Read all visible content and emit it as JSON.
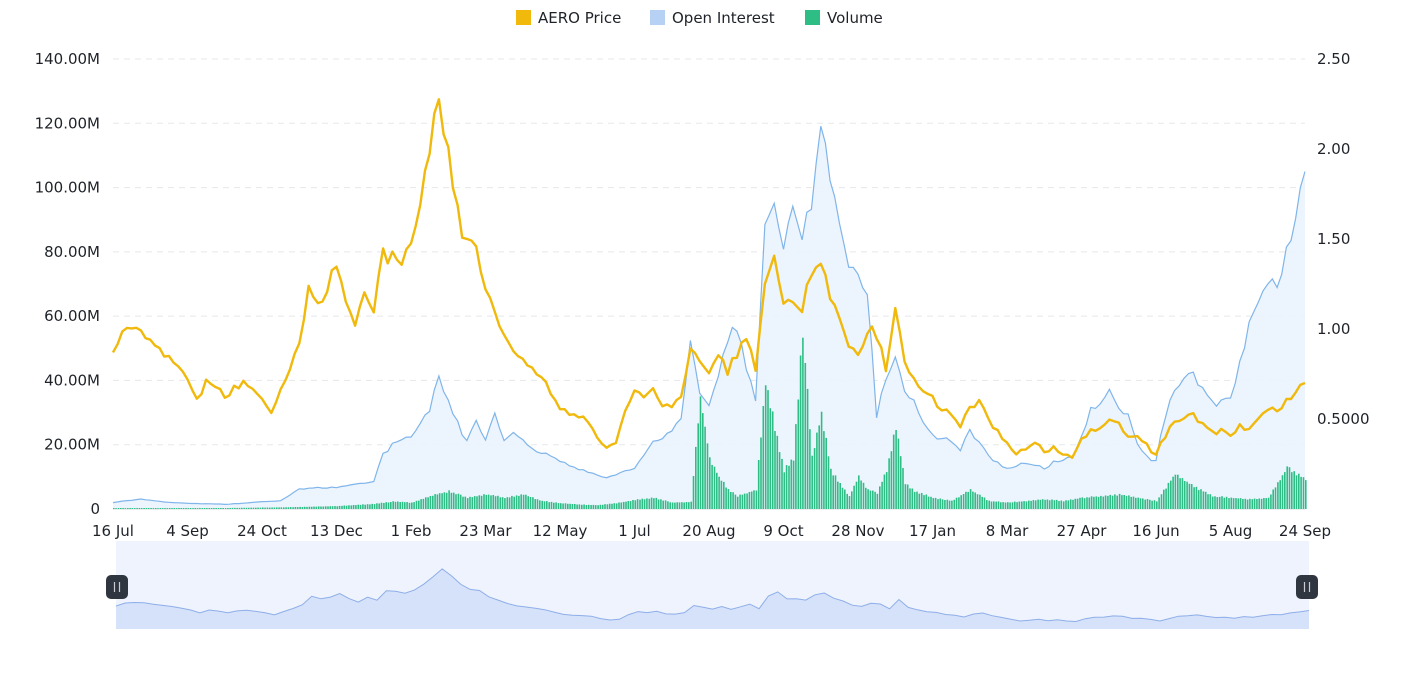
{
  "chart_data": {
    "type": "line",
    "legend": {
      "placement": "top-center",
      "items": [
        {
          "name": "AERO Price",
          "color": "#f0b90b"
        },
        {
          "name": "Open Interest",
          "color": "#b7d1f5"
        },
        {
          "name": "Volume",
          "color": "#2ebd85"
        }
      ]
    },
    "y_left": {
      "range": [
        0,
        140000000
      ],
      "ticks": [
        {
          "value": 0,
          "label": "0"
        },
        {
          "value": 20000000,
          "label": "20.00M"
        },
        {
          "value": 40000000,
          "label": "40.00M"
        },
        {
          "value": 60000000,
          "label": "60.00M"
        },
        {
          "value": 80000000,
          "label": "80.00M"
        },
        {
          "value": 100000000,
          "label": "100.00M"
        },
        {
          "value": 120000000,
          "label": "120.00M"
        },
        {
          "value": 140000000,
          "label": "140.00M"
        }
      ]
    },
    "y_right": {
      "range": [
        0,
        2.5
      ],
      "ticks": [
        {
          "value": 0.5,
          "label": "0.5000"
        },
        {
          "value": 1.0,
          "label": "1.00"
        },
        {
          "value": 1.5,
          "label": "1.50"
        },
        {
          "value": 2.0,
          "label": "2.00"
        },
        {
          "value": 2.5,
          "label": "2.50"
        }
      ]
    },
    "x_ticks": [
      "16 Jul",
      "4 Sep",
      "24 Oct",
      "13 Dec",
      "1 Feb",
      "23 Mar",
      "12 May",
      "1 Jul",
      "20 Aug",
      "9 Oct",
      "28 Nov",
      "17 Jan",
      "8 Mar",
      "27 Apr",
      "16 Jun",
      "5 Aug",
      "24 Sep"
    ],
    "grid": "horizontal-dashed",
    "series": [
      {
        "name": "AERO Price",
        "axis": "right",
        "points": [
          [
            0,
            0.87
          ],
          [
            2,
            1.0
          ],
          [
            4,
            0.92
          ],
          [
            6,
            0.82
          ],
          [
            8,
            0.75
          ],
          [
            9,
            0.63
          ],
          [
            10,
            0.72
          ],
          [
            12,
            0.65
          ],
          [
            14,
            0.72
          ],
          [
            15,
            0.65
          ],
          [
            16,
            0.58
          ],
          [
            17,
            0.52
          ],
          [
            18,
            0.64
          ],
          [
            19,
            0.76
          ],
          [
            20,
            0.88
          ],
          [
            21,
            1.2
          ],
          [
            22,
            1.1
          ],
          [
            23,
            1.25
          ],
          [
            24,
            1.42
          ],
          [
            25,
            1.2
          ],
          [
            26,
            1.05
          ],
          [
            27,
            1.28
          ],
          [
            28,
            1.15
          ],
          [
            29,
            1.5
          ],
          [
            30,
            1.35
          ],
          [
            31,
            1.3
          ],
          [
            32,
            1.45
          ],
          [
            33,
            1.65
          ],
          [
            34,
            1.95
          ],
          [
            35,
            2.2
          ],
          [
            36,
            1.9
          ],
          [
            37,
            1.6
          ],
          [
            38,
            1.55
          ],
          [
            39,
            1.48
          ],
          [
            40,
            1.25
          ],
          [
            41,
            1.1
          ],
          [
            42,
            1.0
          ],
          [
            43,
            0.92
          ],
          [
            44,
            0.85
          ],
          [
            45,
            0.75
          ],
          [
            46,
            0.72
          ],
          [
            47,
            0.62
          ],
          [
            48,
            0.55
          ],
          [
            49,
            0.52
          ],
          [
            50,
            0.5
          ],
          [
            51,
            0.48
          ],
          [
            52,
            0.4
          ],
          [
            53,
            0.35
          ],
          [
            54,
            0.38
          ],
          [
            55,
            0.55
          ],
          [
            56,
            0.68
          ],
          [
            57,
            0.65
          ],
          [
            58,
            0.7
          ],
          [
            59,
            0.6
          ],
          [
            60,
            0.56
          ],
          [
            61,
            0.62
          ],
          [
            62,
            0.85
          ],
          [
            63,
            0.82
          ],
          [
            64,
            0.75
          ],
          [
            65,
            0.85
          ],
          [
            66,
            0.72
          ],
          [
            67,
            0.88
          ],
          [
            68,
            0.98
          ],
          [
            69,
            0.8
          ],
          [
            70,
            1.3
          ],
          [
            71,
            1.45
          ],
          [
            72,
            1.2
          ],
          [
            73,
            1.22
          ],
          [
            74,
            1.15
          ],
          [
            75,
            1.25
          ],
          [
            76,
            1.35
          ],
          [
            77,
            1.12
          ],
          [
            78,
            1.05
          ],
          [
            79,
            0.9
          ],
          [
            80,
            0.82
          ],
          [
            81,
            0.95
          ],
          [
            82,
            1.0
          ],
          [
            83,
            0.8
          ],
          [
            84,
            1.18
          ],
          [
            85,
            0.85
          ],
          [
            86,
            0.75
          ],
          [
            87,
            0.68
          ],
          [
            88,
            0.65
          ],
          [
            89,
            0.55
          ],
          [
            90,
            0.5
          ],
          [
            91,
            0.45
          ],
          [
            92,
            0.55
          ],
          [
            93,
            0.58
          ],
          [
            94,
            0.48
          ],
          [
            95,
            0.42
          ],
          [
            96,
            0.35
          ],
          [
            97,
            0.32
          ],
          [
            98,
            0.35
          ],
          [
            99,
            0.38
          ],
          [
            100,
            0.33
          ],
          [
            101,
            0.35
          ],
          [
            102,
            0.32
          ],
          [
            103,
            0.3
          ],
          [
            104,
            0.38
          ],
          [
            105,
            0.42
          ],
          [
            106,
            0.44
          ],
          [
            107,
            0.48
          ],
          [
            108,
            0.46
          ],
          [
            109,
            0.38
          ],
          [
            110,
            0.4
          ],
          [
            111,
            0.35
          ],
          [
            112,
            0.32
          ],
          [
            113,
            0.42
          ],
          [
            114,
            0.5
          ],
          [
            115,
            0.52
          ],
          [
            116,
            0.55
          ],
          [
            117,
            0.48
          ],
          [
            118,
            0.45
          ],
          [
            119,
            0.42
          ],
          [
            120,
            0.4
          ],
          [
            121,
            0.45
          ],
          [
            122,
            0.42
          ],
          [
            123,
            0.5
          ],
          [
            124,
            0.55
          ],
          [
            125,
            0.52
          ],
          [
            126,
            0.6
          ],
          [
            127,
            0.68
          ],
          [
            128,
            0.7
          ]
        ]
      },
      {
        "name": "Open Interest",
        "axis": "left",
        "points": [
          [
            0,
            2000000
          ],
          [
            3,
            3000000
          ],
          [
            6,
            2000000
          ],
          [
            12,
            1500000
          ],
          [
            18,
            2500000
          ],
          [
            20,
            6000000
          ],
          [
            24,
            7000000
          ],
          [
            28,
            9000000
          ],
          [
            29,
            18000000
          ],
          [
            32,
            22000000
          ],
          [
            34,
            30000000
          ],
          [
            35,
            40000000
          ],
          [
            36,
            32000000
          ],
          [
            37,
            26000000
          ],
          [
            38,
            22000000
          ],
          [
            39,
            28000000
          ],
          [
            40,
            22000000
          ],
          [
            41,
            30000000
          ],
          [
            42,
            22000000
          ],
          [
            43,
            25000000
          ],
          [
            44,
            22000000
          ],
          [
            45,
            18000000
          ],
          [
            47,
            16000000
          ],
          [
            50,
            12000000
          ],
          [
            53,
            10000000
          ],
          [
            56,
            13000000
          ],
          [
            58,
            22000000
          ],
          [
            60,
            24000000
          ],
          [
            61,
            28000000
          ],
          [
            62,
            50000000
          ],
          [
            63,
            36000000
          ],
          [
            64,
            32000000
          ],
          [
            66,
            50000000
          ],
          [
            67,
            58000000
          ],
          [
            68,
            45000000
          ],
          [
            69,
            35000000
          ],
          [
            70,
            92000000
          ],
          [
            71,
            98000000
          ],
          [
            72,
            85000000
          ],
          [
            73,
            100000000
          ],
          [
            74,
            88000000
          ],
          [
            75,
            90000000
          ],
          [
            76,
            118000000
          ],
          [
            77,
            98000000
          ],
          [
            78,
            88000000
          ],
          [
            79,
            75000000
          ],
          [
            80,
            70000000
          ],
          [
            81,
            65000000
          ],
          [
            82,
            30000000
          ],
          [
            83,
            42000000
          ],
          [
            84,
            50000000
          ],
          [
            85,
            38000000
          ],
          [
            86,
            35000000
          ],
          [
            87,
            28000000
          ],
          [
            88,
            24000000
          ],
          [
            89,
            22000000
          ],
          [
            90,
            20000000
          ],
          [
            91,
            18000000
          ],
          [
            92,
            24000000
          ],
          [
            93,
            20000000
          ],
          [
            94,
            16000000
          ],
          [
            95,
            14000000
          ],
          [
            96,
            12000000
          ],
          [
            97,
            14000000
          ],
          [
            98,
            15000000
          ],
          [
            100,
            13000000
          ],
          [
            101,
            15000000
          ],
          [
            103,
            17000000
          ],
          [
            104,
            22000000
          ],
          [
            105,
            30000000
          ],
          [
            106,
            32000000
          ],
          [
            107,
            36000000
          ],
          [
            108,
            30000000
          ],
          [
            109,
            28000000
          ],
          [
            110,
            20000000
          ],
          [
            111,
            16000000
          ],
          [
            112,
            16000000
          ],
          [
            113,
            30000000
          ],
          [
            114,
            38000000
          ],
          [
            115,
            42000000
          ],
          [
            116,
            44000000
          ],
          [
            117,
            38000000
          ],
          [
            118,
            35000000
          ],
          [
            119,
            32000000
          ],
          [
            120,
            34000000
          ],
          [
            121,
            44000000
          ],
          [
            122,
            55000000
          ],
          [
            123,
            64000000
          ],
          [
            124,
            70000000
          ],
          [
            125,
            66000000
          ],
          [
            126,
            80000000
          ],
          [
            127,
            95000000
          ],
          [
            128,
            105000000
          ]
        ]
      },
      {
        "name": "Volume",
        "axis": "left",
        "points": [
          [
            0,
            300000
          ],
          [
            6,
            300000
          ],
          [
            12,
            300000
          ],
          [
            18,
            500000
          ],
          [
            24,
            900000
          ],
          [
            28,
            1600000
          ],
          [
            30,
            2300000
          ],
          [
            32,
            2000000
          ],
          [
            34,
            4000000
          ],
          [
            36,
            5500000
          ],
          [
            38,
            3500000
          ],
          [
            40,
            4500000
          ],
          [
            42,
            3500000
          ],
          [
            44,
            4500000
          ],
          [
            46,
            2500000
          ],
          [
            48,
            1800000
          ],
          [
            50,
            1400000
          ],
          [
            52,
            1200000
          ],
          [
            54,
            1800000
          ],
          [
            56,
            2800000
          ],
          [
            58,
            3500000
          ],
          [
            60,
            2000000
          ],
          [
            62,
            2200000
          ],
          [
            63,
            35000000
          ],
          [
            64,
            16000000
          ],
          [
            65,
            10000000
          ],
          [
            66,
            6000000
          ],
          [
            67,
            4000000
          ],
          [
            68,
            5000000
          ],
          [
            69,
            6000000
          ],
          [
            70,
            40000000
          ],
          [
            71,
            25000000
          ],
          [
            72,
            12000000
          ],
          [
            73,
            16000000
          ],
          [
            74,
            56000000
          ],
          [
            75,
            16000000
          ],
          [
            76,
            30000000
          ],
          [
            77,
            12000000
          ],
          [
            78,
            8000000
          ],
          [
            79,
            4000000
          ],
          [
            80,
            10000000
          ],
          [
            81,
            6000000
          ],
          [
            82,
            5000000
          ],
          [
            83,
            12000000
          ],
          [
            84,
            26000000
          ],
          [
            85,
            8000000
          ],
          [
            86,
            5500000
          ],
          [
            88,
            3500000
          ],
          [
            90,
            2500000
          ],
          [
            92,
            6000000
          ],
          [
            94,
            2500000
          ],
          [
            96,
            2000000
          ],
          [
            98,
            2500000
          ],
          [
            100,
            3000000
          ],
          [
            102,
            2500000
          ],
          [
            104,
            3500000
          ],
          [
            106,
            4000000
          ],
          [
            108,
            4500000
          ],
          [
            110,
            3500000
          ],
          [
            112,
            2500000
          ],
          [
            114,
            11000000
          ],
          [
            116,
            7000000
          ],
          [
            118,
            4000000
          ],
          [
            120,
            3500000
          ],
          [
            122,
            3000000
          ],
          [
            124,
            3500000
          ],
          [
            125,
            8000000
          ],
          [
            126,
            13000000
          ],
          [
            127,
            11000000
          ],
          [
            128,
            9000000
          ]
        ]
      }
    ]
  }
}
